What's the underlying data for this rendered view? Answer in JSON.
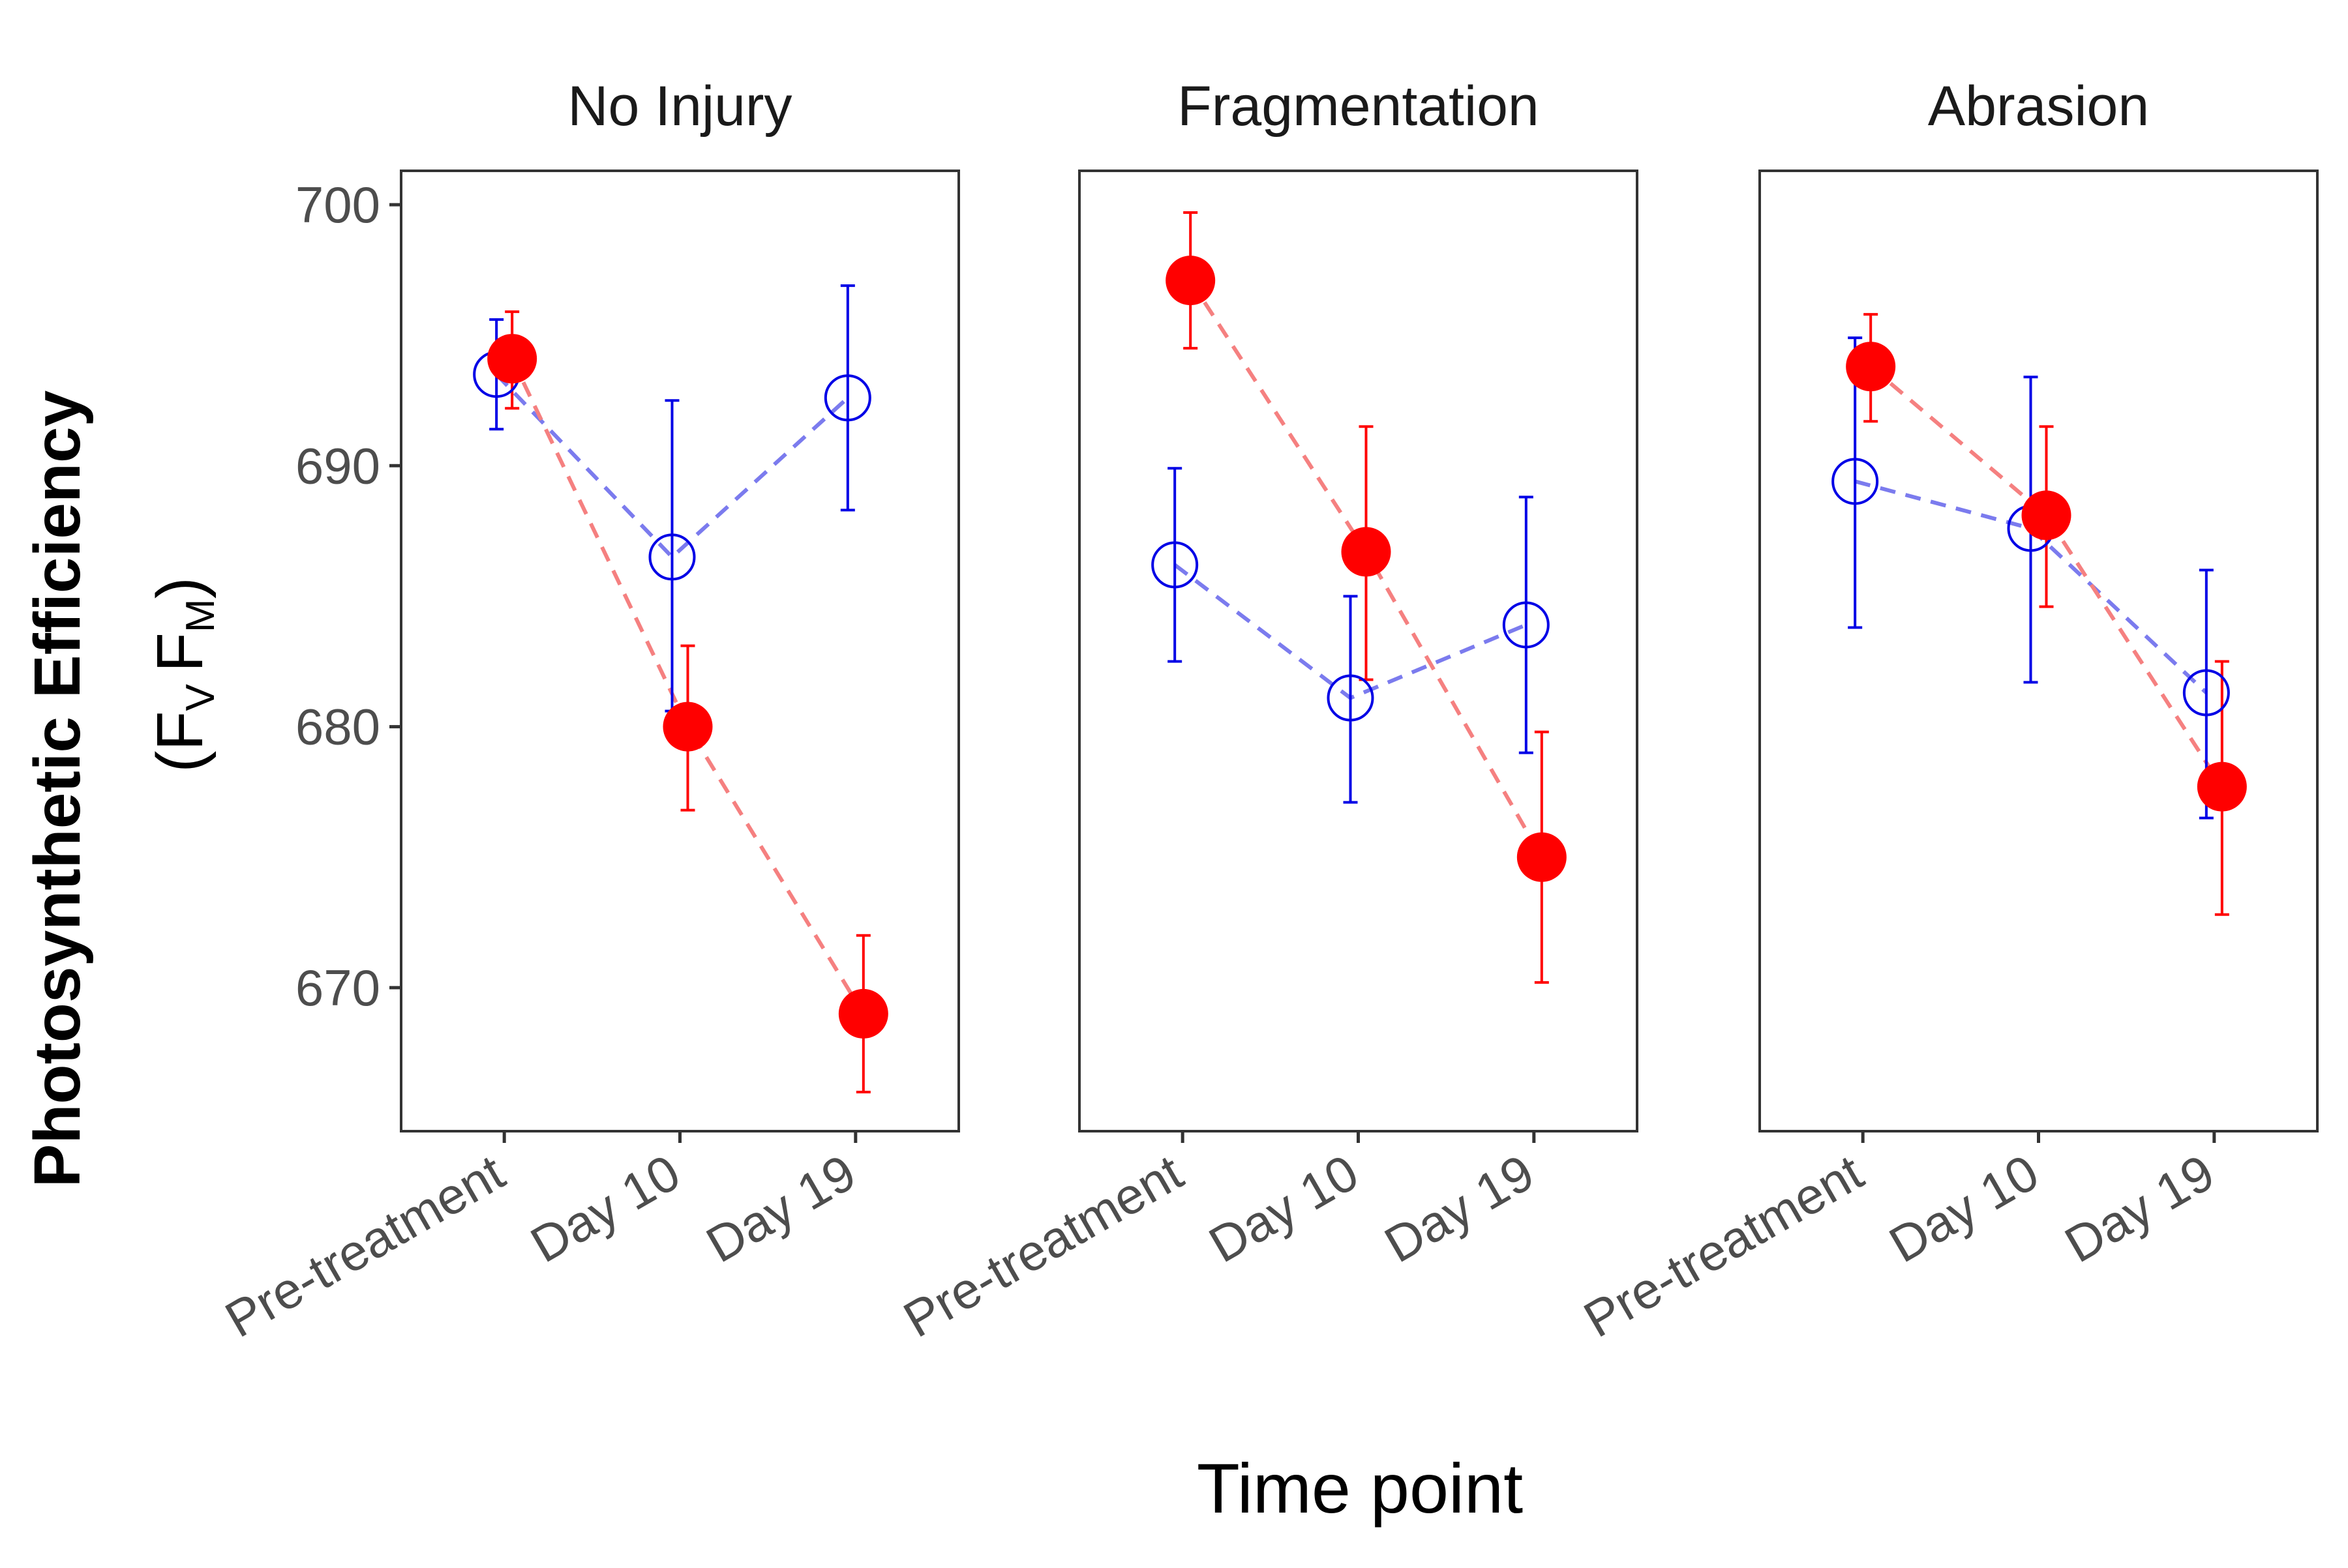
{
  "chart_data": {
    "type": "scatter",
    "xlabel": "Time point",
    "ylabel": "Photosynthetic Efficiency",
    "ylabel_sub": {
      "open": "(",
      "main1": "F",
      "sub1": "V",
      "main2": "F",
      "sub2": "M",
      "close": ")"
    },
    "categories": [
      "Pre-treatment",
      "Day 10",
      "Day 19"
    ],
    "ylim": [
      664.5,
      701.3
    ],
    "yticks": [
      670,
      680,
      690,
      700
    ],
    "ytick_labels": [
      "670",
      "680",
      "690",
      "700"
    ],
    "grid": false,
    "legend": "none",
    "colors": {
      "series_a": "#0000e6",
      "series_b": "#ff0000",
      "series_a_line": "#7b7bee",
      "series_b_line": "#f58080",
      "axis": "#333333"
    },
    "panels": [
      {
        "title": "No Injury",
        "series": [
          {
            "style": "open",
            "values": [
              693.5,
              686.5,
              692.6
            ],
            "lower": [
              691.4,
              680.6,
              688.3
            ],
            "upper": [
              695.6,
              692.5,
              696.9
            ]
          },
          {
            "style": "filled",
            "values": [
              694.1,
              680.0,
              669.0
            ],
            "lower": [
              692.2,
              676.8,
              666.0
            ],
            "upper": [
              695.9,
              683.1,
              672.0
            ]
          }
        ]
      },
      {
        "title": "Fragmentation",
        "series": [
          {
            "style": "open",
            "values": [
              686.2,
              681.1,
              683.9
            ],
            "lower": [
              682.5,
              677.1,
              679.0
            ],
            "upper": [
              689.9,
              685.0,
              688.8
            ]
          },
          {
            "style": "filled",
            "values": [
              697.1,
              686.7,
              675.0
            ],
            "lower": [
              694.5,
              681.8,
              670.2
            ],
            "upper": [
              699.7,
              691.5,
              679.8
            ]
          }
        ]
      },
      {
        "title": "Abrasion",
        "series": [
          {
            "style": "open",
            "values": [
              689.4,
              687.6,
              681.3
            ],
            "lower": [
              683.8,
              681.7,
              676.5
            ],
            "upper": [
              694.9,
              693.4,
              686.0
            ]
          },
          {
            "style": "filled",
            "values": [
              693.8,
              688.1,
              677.7
            ],
            "lower": [
              691.7,
              684.6,
              672.8
            ],
            "upper": [
              695.8,
              691.5,
              682.5
            ]
          }
        ]
      }
    ]
  }
}
